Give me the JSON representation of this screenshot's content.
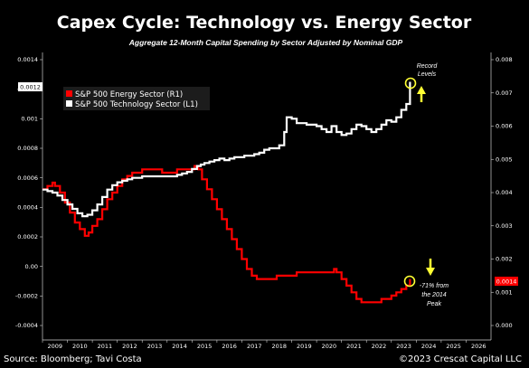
{
  "chart_data": {
    "type": "line",
    "title": "Capex Cycle: Technology vs. Energy Sector",
    "subtitle": "Aggregate 12-Month Capital Spending by Sector Adjusted by Nominal GDP",
    "x_ticks": [
      "2009",
      "2010",
      "2011",
      "2012",
      "2013",
      "2014",
      "2015",
      "2016",
      "2017",
      "2018",
      "2019",
      "2020",
      "2021",
      "2022",
      "2023",
      "2024",
      "2025",
      "2026"
    ],
    "xlim": [
      2008.5,
      2026.5
    ],
    "left_axis": {
      "ylim": [
        -0.0004,
        0.0014
      ],
      "ticks": [
        {
          "v": -0.0004,
          "label": "-0.0004"
        },
        {
          "v": -0.0002,
          "label": "-0.0002"
        },
        {
          "v": 0,
          "label": "0.00"
        },
        {
          "v": 0.0002,
          "label": "0.0002"
        },
        {
          "v": 0.0004,
          "label": "0.0004"
        },
        {
          "v": 0.0006,
          "label": "0.0006"
        },
        {
          "v": 0.0008,
          "label": "0.0008"
        },
        {
          "v": 0.001,
          "label": "0.001"
        },
        {
          "v": 0.0012,
          "label": "0.0012"
        },
        {
          "v": 0.0014,
          "label": "0.0014"
        }
      ]
    },
    "right_axis": {
      "ylim": [
        0,
        0.008
      ],
      "ticks": [
        {
          "v": 0,
          "label": "0.000"
        },
        {
          "v": 0.001,
          "label": "0.001"
        },
        {
          "v": 0.002,
          "label": "0.002"
        },
        {
          "v": 0.003,
          "label": "0.003"
        },
        {
          "v": 0.004,
          "label": "0.004"
        },
        {
          "v": 0.005,
          "label": "0.005"
        },
        {
          "v": 0.006,
          "label": "0.006"
        },
        {
          "v": 0.007,
          "label": "0.007"
        },
        {
          "v": 0.008,
          "label": "0.008"
        }
      ]
    },
    "series": [
      {
        "name": "S&P 500 Energy Sector (R1)",
        "axis": "right",
        "color": "#ff0000",
        "points": [
          [
            2008.5,
            0.0041
          ],
          [
            2008.7,
            0.0042
          ],
          [
            2008.9,
            0.0043
          ],
          [
            2009.0,
            0.0042
          ],
          [
            2009.2,
            0.004
          ],
          [
            2009.4,
            0.0037
          ],
          [
            2009.6,
            0.0034
          ],
          [
            2009.8,
            0.0031
          ],
          [
            2010.0,
            0.0029
          ],
          [
            2010.2,
            0.0027
          ],
          [
            2010.35,
            0.0028
          ],
          [
            2010.5,
            0.003
          ],
          [
            2010.7,
            0.0032
          ],
          [
            2010.9,
            0.0035
          ],
          [
            2011.1,
            0.0038
          ],
          [
            2011.3,
            0.004
          ],
          [
            2011.5,
            0.0042
          ],
          [
            2011.7,
            0.0044
          ],
          [
            2011.9,
            0.0045
          ],
          [
            2012.1,
            0.0046
          ],
          [
            2012.3,
            0.0046
          ],
          [
            2012.5,
            0.0047
          ],
          [
            2012.7,
            0.0047
          ],
          [
            2012.9,
            0.0047
          ],
          [
            2013.1,
            0.0047
          ],
          [
            2013.3,
            0.0046
          ],
          [
            2013.5,
            0.0046
          ],
          [
            2013.7,
            0.0046
          ],
          [
            2013.9,
            0.0047
          ],
          [
            2014.1,
            0.0047
          ],
          [
            2014.3,
            0.0047
          ],
          [
            2014.5,
            0.0047
          ],
          [
            2014.6,
            0.0048
          ],
          [
            2014.75,
            0.0047
          ],
          [
            2014.9,
            0.0044
          ],
          [
            2015.1,
            0.0041
          ],
          [
            2015.3,
            0.0038
          ],
          [
            2015.5,
            0.0035
          ],
          [
            2015.7,
            0.0032
          ],
          [
            2015.9,
            0.0029
          ],
          [
            2016.1,
            0.0026
          ],
          [
            2016.3,
            0.0023
          ],
          [
            2016.5,
            0.002
          ],
          [
            2016.7,
            0.0017
          ],
          [
            2016.9,
            0.0015
          ],
          [
            2017.1,
            0.0014
          ],
          [
            2017.3,
            0.0014
          ],
          [
            2017.5,
            0.0014
          ],
          [
            2017.7,
            0.0014
          ],
          [
            2017.9,
            0.0015
          ],
          [
            2018.1,
            0.0015
          ],
          [
            2018.3,
            0.0015
          ],
          [
            2018.5,
            0.0015
          ],
          [
            2018.7,
            0.0016
          ],
          [
            2018.9,
            0.0016
          ],
          [
            2019.1,
            0.0016
          ],
          [
            2019.3,
            0.0016
          ],
          [
            2019.5,
            0.0016
          ],
          [
            2019.7,
            0.0016
          ],
          [
            2019.9,
            0.0016
          ],
          [
            2020.1,
            0.0016
          ],
          [
            2020.2,
            0.0017
          ],
          [
            2020.3,
            0.0016
          ],
          [
            2020.5,
            0.0014
          ],
          [
            2020.7,
            0.0012
          ],
          [
            2020.9,
            0.001
          ],
          [
            2021.1,
            0.0008
          ],
          [
            2021.3,
            0.0007
          ],
          [
            2021.5,
            0.0007
          ],
          [
            2021.7,
            0.0007
          ],
          [
            2021.9,
            0.0007
          ],
          [
            2022.1,
            0.0008
          ],
          [
            2022.3,
            0.0008
          ],
          [
            2022.5,
            0.0009
          ],
          [
            2022.7,
            0.001
          ],
          [
            2022.9,
            0.0011
          ],
          [
            2023.1,
            0.0012
          ],
          [
            2023.25,
            0.0014
          ]
        ]
      },
      {
        "name": "S&P 500 Technology Sector (L1)",
        "axis": "left",
        "color": "#ffffff",
        "points": [
          [
            2008.5,
            0.00052
          ],
          [
            2008.7,
            0.00051
          ],
          [
            2008.9,
            0.0005
          ],
          [
            2009.1,
            0.00048
          ],
          [
            2009.3,
            0.00045
          ],
          [
            2009.5,
            0.00042
          ],
          [
            2009.7,
            0.00039
          ],
          [
            2009.9,
            0.00036
          ],
          [
            2010.1,
            0.00034
          ],
          [
            2010.3,
            0.00035
          ],
          [
            2010.5,
            0.00038
          ],
          [
            2010.7,
            0.00042
          ],
          [
            2010.9,
            0.00047
          ],
          [
            2011.1,
            0.00052
          ],
          [
            2011.3,
            0.00055
          ],
          [
            2011.5,
            0.00057
          ],
          [
            2011.7,
            0.00058
          ],
          [
            2011.9,
            0.00059
          ],
          [
            2012.1,
            0.0006
          ],
          [
            2012.3,
            0.0006
          ],
          [
            2012.5,
            0.00061
          ],
          [
            2012.7,
            0.00061
          ],
          [
            2012.9,
            0.00061
          ],
          [
            2013.1,
            0.00061
          ],
          [
            2013.3,
            0.00061
          ],
          [
            2013.5,
            0.00061
          ],
          [
            2013.7,
            0.00061
          ],
          [
            2013.9,
            0.00062
          ],
          [
            2014.1,
            0.00063
          ],
          [
            2014.3,
            0.00064
          ],
          [
            2014.5,
            0.00066
          ],
          [
            2014.7,
            0.00068
          ],
          [
            2014.85,
            0.00069
          ],
          [
            2015.0,
            0.0007
          ],
          [
            2015.2,
            0.00071
          ],
          [
            2015.4,
            0.00072
          ],
          [
            2015.6,
            0.00073
          ],
          [
            2015.8,
            0.00072
          ],
          [
            2016.0,
            0.00073
          ],
          [
            2016.2,
            0.00074
          ],
          [
            2016.4,
            0.00074
          ],
          [
            2016.6,
            0.00075
          ],
          [
            2016.8,
            0.00075
          ],
          [
            2017.0,
            0.00076
          ],
          [
            2017.2,
            0.00077
          ],
          [
            2017.4,
            0.00079
          ],
          [
            2017.6,
            0.0008
          ],
          [
            2017.8,
            0.0008
          ],
          [
            2018.0,
            0.00082
          ],
          [
            2018.2,
            0.00091
          ],
          [
            2018.3,
            0.00101
          ],
          [
            2018.5,
            0.001
          ],
          [
            2018.7,
            0.00097
          ],
          [
            2018.9,
            0.00097
          ],
          [
            2019.1,
            0.00096
          ],
          [
            2019.3,
            0.00096
          ],
          [
            2019.5,
            0.00095
          ],
          [
            2019.7,
            0.00093
          ],
          [
            2019.9,
            0.00091
          ],
          [
            2020.1,
            0.00095
          ],
          [
            2020.3,
            0.00091
          ],
          [
            2020.5,
            0.00089
          ],
          [
            2020.7,
            0.0009
          ],
          [
            2020.9,
            0.00093
          ],
          [
            2021.1,
            0.00096
          ],
          [
            2021.3,
            0.00095
          ],
          [
            2021.5,
            0.00093
          ],
          [
            2021.7,
            0.00091
          ],
          [
            2021.9,
            0.00093
          ],
          [
            2022.1,
            0.00096
          ],
          [
            2022.3,
            0.00099
          ],
          [
            2022.5,
            0.00098
          ],
          [
            2022.7,
            0.00101
          ],
          [
            2022.9,
            0.00106
          ],
          [
            2023.1,
            0.0011
          ],
          [
            2023.25,
            0.00125
          ]
        ]
      }
    ],
    "legend_position": "upper-left",
    "grid": false,
    "annotations": {
      "tech_label": "Record\nLevels",
      "energy_label": "-71% from\nthe 2014\nPeak",
      "left_badge": "0.0012",
      "right_badge": "0.0014"
    },
    "footer_left": "Source: Bloomberg; Tavi Costa",
    "footer_right": "©2023 Crescat Capital LLC"
  }
}
